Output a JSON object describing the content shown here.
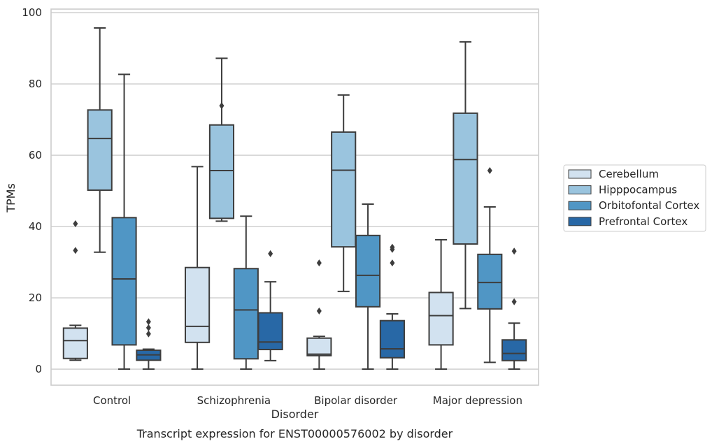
{
  "caption": "Transcript expression for ENST00000576002 by disorder",
  "chart_data": {
    "type": "box",
    "xlabel": "Disorder",
    "ylabel": "TPMs",
    "ylim": [
      -4.5,
      101
    ],
    "yticks": [
      0,
      20,
      40,
      60,
      80,
      100
    ],
    "grid": "horizontal",
    "legend_position": "right",
    "categories": [
      "Control",
      "Schizophrenia",
      "Bipolar disorder",
      "Major depression"
    ],
    "series": [
      {
        "name": "Cerebellum",
        "color": "#d2e2f0",
        "boxes": [
          {
            "min": 2.5,
            "q1": 3,
            "median": 8,
            "q3": 11.5,
            "max": 12.3,
            "outliers": [
              33.3,
              40.8
            ]
          },
          {
            "min": 0,
            "q1": 7.5,
            "median": 12,
            "q3": 28.5,
            "max": 56.8,
            "outliers": []
          },
          {
            "min": 0,
            "q1": 3.8,
            "median": 4.2,
            "q3": 8.7,
            "max": 9.2,
            "outliers": [
              16.3,
              29.8
            ]
          },
          {
            "min": 0,
            "q1": 6.8,
            "median": 15,
            "q3": 21.5,
            "max": 36.3,
            "outliers": []
          }
        ]
      },
      {
        "name": "Hipppocampus",
        "color": "#9ac4de",
        "boxes": [
          {
            "min": 32.8,
            "q1": 50.2,
            "median": 64.7,
            "q3": 72.7,
            "max": 95.7,
            "outliers": []
          },
          {
            "min": 41.5,
            "q1": 42.3,
            "median": 55.7,
            "q3": 68.5,
            "max": 87.2,
            "outliers": [
              73.9
            ]
          },
          {
            "min": 21.8,
            "q1": 34.3,
            "median": 55.8,
            "q3": 66.5,
            "max": 76.9,
            "outliers": []
          },
          {
            "min": 17,
            "q1": 35.1,
            "median": 58.8,
            "q3": 71.8,
            "max": 91.8,
            "outliers": []
          }
        ]
      },
      {
        "name": "Orbitofontal Cortex",
        "color": "#5096c5",
        "boxes": [
          {
            "min": 0,
            "q1": 6.8,
            "median": 25.3,
            "q3": 42.5,
            "max": 82.7,
            "outliers": []
          },
          {
            "min": 0,
            "q1": 2.9,
            "median": 16.6,
            "q3": 28.2,
            "max": 42.9,
            "outliers": []
          },
          {
            "min": 0,
            "q1": 17.5,
            "median": 26.3,
            "q3": 37.5,
            "max": 46.3,
            "outliers": []
          },
          {
            "min": 1.9,
            "q1": 16.9,
            "median": 24.3,
            "q3": 32.2,
            "max": 45.5,
            "outliers": [
              55.7
            ]
          }
        ]
      },
      {
        "name": "Prefrontal Cortex",
        "color": "#2868a6",
        "boxes": [
          {
            "min": 0,
            "q1": 2.5,
            "median": 4,
            "q3": 5.3,
            "max": 5.6,
            "outliers": [
              9.9,
              11.6,
              13.3
            ]
          },
          {
            "min": 2.4,
            "q1": 5.5,
            "median": 7.6,
            "q3": 15.8,
            "max": 24.5,
            "outliers": [
              32.4
            ]
          },
          {
            "min": 0,
            "q1": 3.2,
            "median": 5.7,
            "q3": 13.6,
            "max": 15.5,
            "outliers": [
              29.8,
              33.6,
              34.2
            ]
          },
          {
            "min": 0,
            "q1": 2.4,
            "median": 4.4,
            "q3": 8.2,
            "max": 12.9,
            "outliers": [
              18.9,
              33.1
            ]
          }
        ]
      }
    ]
  }
}
